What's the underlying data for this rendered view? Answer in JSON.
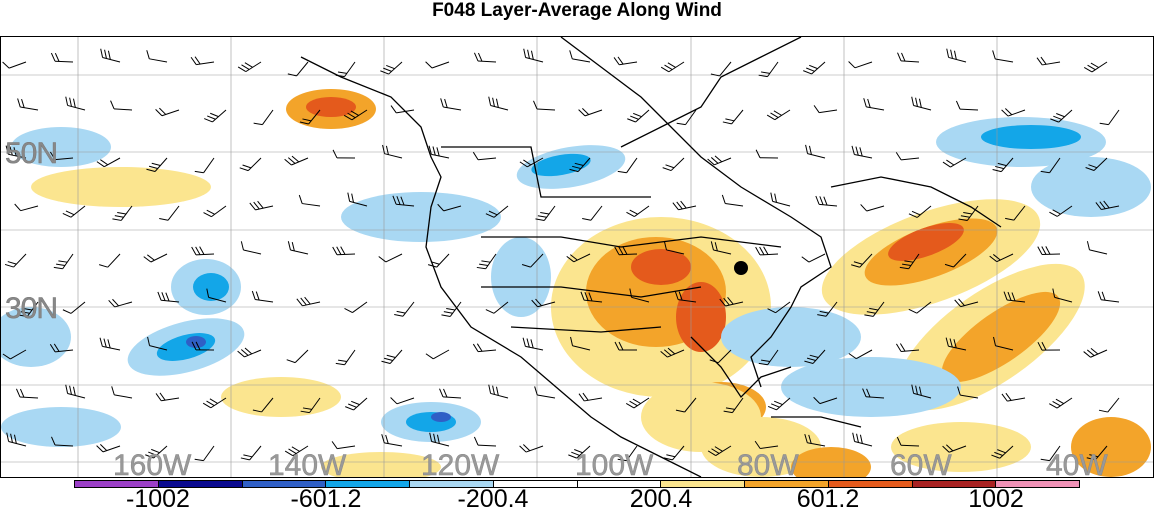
{
  "title": "F048 Layer-Average Along Wind",
  "lat_labels": [
    "50N",
    "30N"
  ],
  "lon_labels": [
    "160W",
    "140W",
    "120W",
    "100W",
    "80W",
    "60W",
    "40W"
  ],
  "colorbar": {
    "labels": [
      "-1002",
      "-601.2",
      "-200.4",
      "200.4",
      "601.2",
      "1002"
    ],
    "colors": [
      "#9b3fc7",
      "#0a0a8f",
      "#2f5fc6",
      "#13a6e8",
      "#a9d8f3",
      "#ffffff",
      "#ffffff",
      "#fbe58f",
      "#f3a42a",
      "#e45a1c",
      "#a82222",
      "#f092b7"
    ]
  },
  "palette": {
    "coast": "#000000",
    "grid": "#999999",
    "barb": "#000000"
  }
}
